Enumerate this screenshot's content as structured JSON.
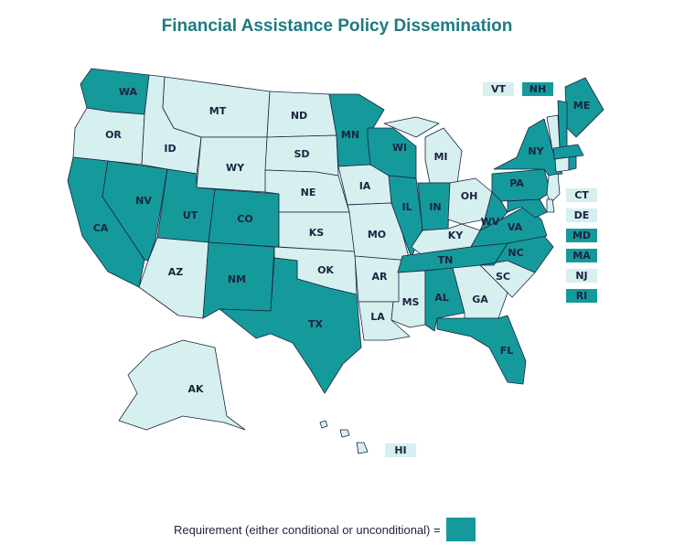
{
  "title": "Financial Assistance Policy Dissemination",
  "colors": {
    "requirement": "#159a9c",
    "no_requirement": "#d6efef",
    "title": "#1f7a80",
    "label": "#1b2340"
  },
  "legend": {
    "text": "Requirement (either conditional or unconditional) ="
  },
  "states": {
    "WA": true,
    "OR": false,
    "CA": true,
    "NV": true,
    "ID": false,
    "MT": false,
    "WY": false,
    "UT": true,
    "CO": true,
    "AZ": false,
    "NM": true,
    "ND": false,
    "SD": false,
    "NE": false,
    "KS": false,
    "OK": false,
    "TX": true,
    "MN": true,
    "IA": false,
    "MO": false,
    "AR": false,
    "LA": false,
    "WI": true,
    "IL": true,
    "MI": false,
    "IN": true,
    "OH": false,
    "KY": false,
    "TN": true,
    "MS": false,
    "AL": true,
    "GA": false,
    "FL": true,
    "SC": false,
    "NC": true,
    "VA": true,
    "WV": true,
    "PA": true,
    "NY": true,
    "ME": true,
    "AK": false,
    "HI": false,
    "VT": false,
    "NH": true,
    "CT": false,
    "DE": false,
    "MD": true,
    "MA": true,
    "NJ": false,
    "RI": true
  },
  "side_boxes": [
    "CT",
    "DE",
    "MD",
    "MA",
    "NJ",
    "RI"
  ],
  "top_boxes": [
    "VT",
    "NH"
  ],
  "hi_box": "HI"
}
